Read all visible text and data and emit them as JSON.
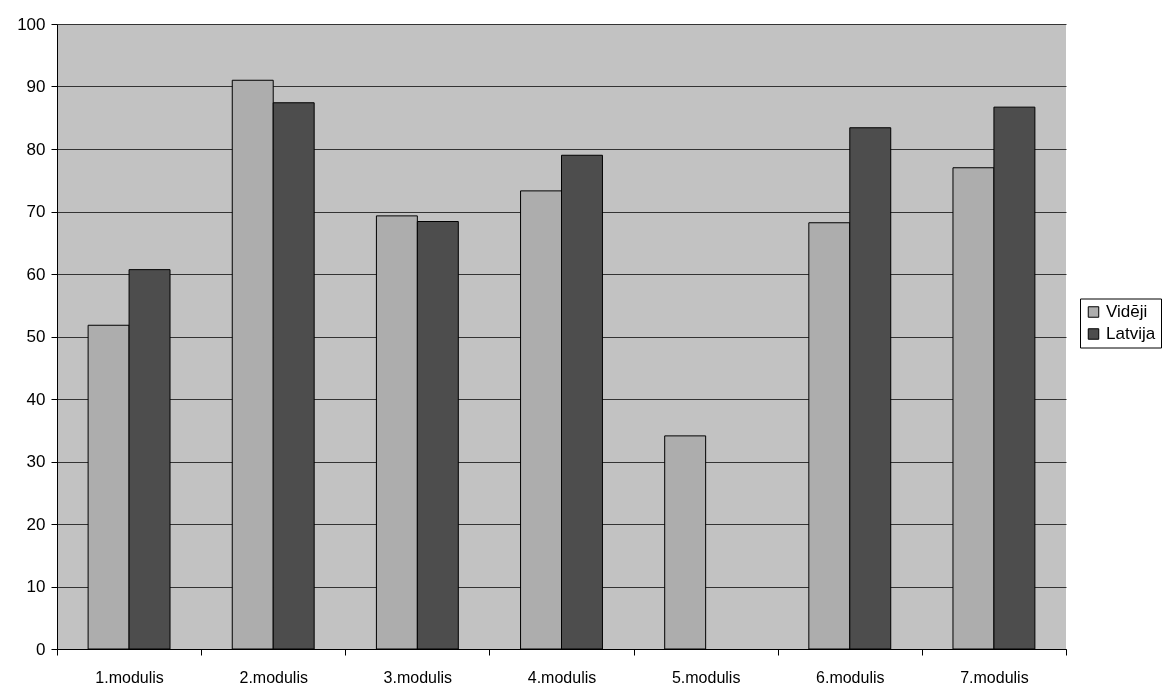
{
  "chart_data": {
    "type": "bar",
    "categories": [
      "1.modulis",
      "2.modulis",
      "3.modulis",
      "4.modulis",
      "5.modulis",
      "6.modulis",
      "7.modulis"
    ],
    "series": [
      {
        "name": "Vidēji",
        "color": "#adadad",
        "values": [
          51.8,
          91.0,
          69.3,
          73.3,
          34.1,
          68.2,
          77.0
        ]
      },
      {
        "name": "Latvija",
        "color": "#4d4d4d",
        "values": [
          60.7,
          87.4,
          68.4,
          79.0,
          null,
          83.4,
          86.7
        ]
      }
    ],
    "ylim": [
      0,
      100
    ],
    "yticks": [
      0,
      10,
      20,
      30,
      40,
      50,
      60,
      70,
      80,
      90,
      100
    ],
    "grid": "y",
    "legend": "right"
  }
}
